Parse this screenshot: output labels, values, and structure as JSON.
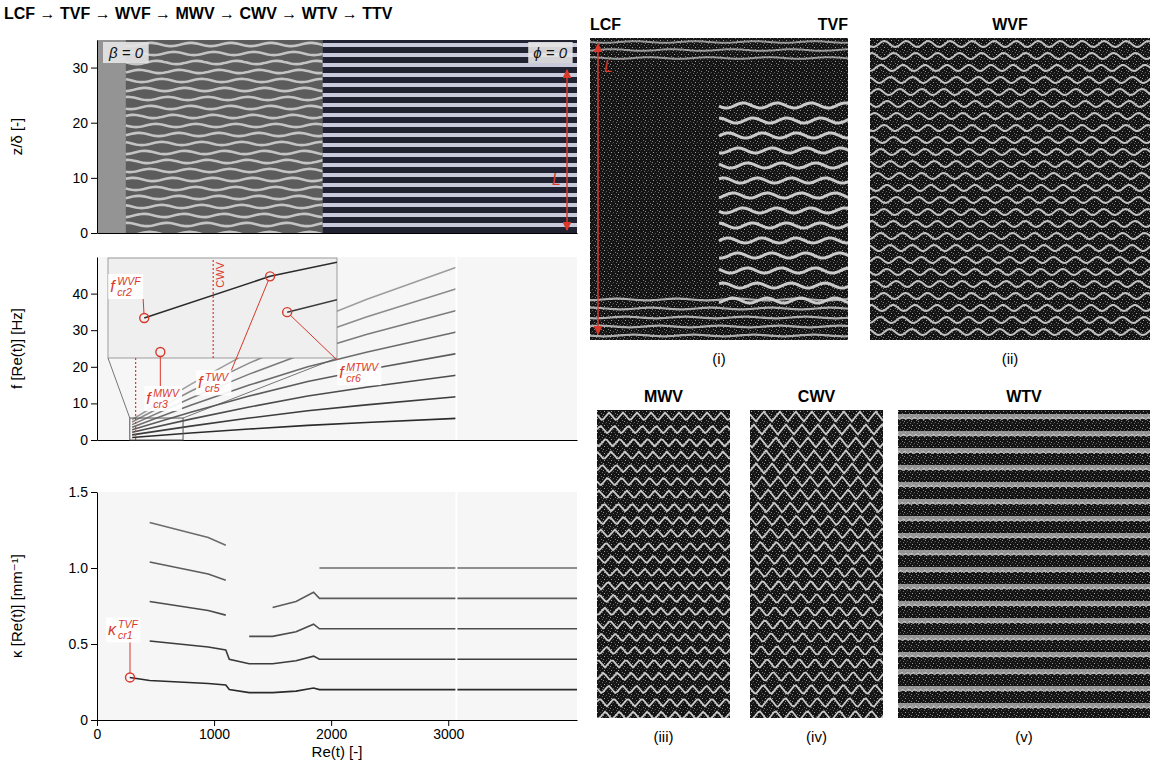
{
  "title": "LCF → TVF → WVF → MWV → CWV → WTV → TTV",
  "chart_data": [
    {
      "type": "space_time",
      "y_label": "z/δ [-]",
      "xlim": [
        0,
        4100
      ],
      "ylim": [
        0,
        35
      ],
      "yticks": [
        0,
        10,
        20,
        30
      ],
      "tick_labels": "y",
      "annotations": [
        "β = 0",
        "ϕ = 0"
      ],
      "length_label": "L"
    },
    {
      "type": "line",
      "y_label": "f [Re(t)] [Hz]",
      "xlim": [
        0,
        4100
      ],
      "ylim": [
        0,
        50
      ],
      "yticks": [
        0,
        10,
        20,
        30,
        40
      ],
      "tick_labels": "y",
      "x": [
        300,
        800,
        1300,
        1800,
        2300,
        3070
      ],
      "series": [
        {
          "color": "#2b2b2b",
          "values": [
            0.7,
            1.9,
            3.0,
            4.0,
            4.8,
            5.9
          ]
        },
        {
          "color": "#2b2b2b",
          "values": [
            1.4,
            3.8,
            6.0,
            8.0,
            9.6,
            11.8
          ]
        },
        {
          "color": "#2b2b2b",
          "values": [
            2.1,
            5.7,
            9.0,
            12.0,
            14.4,
            17.7
          ]
        },
        {
          "color": "#2b2b2b",
          "values": [
            2.8,
            7.6,
            12.0,
            16.0,
            19.2,
            23.6
          ]
        },
        {
          "color": "#2b2b2b",
          "values": [
            3.5,
            9.5,
            15.0,
            20.0,
            24.0,
            29.5
          ]
        },
        {
          "color": "#2b2b2b",
          "values": [
            4.2,
            11.4,
            18.0,
            24.0,
            28.8,
            35.4
          ]
        },
        {
          "color": "#2b2b2b",
          "values": [
            4.9,
            13.3,
            21.0,
            28.0,
            33.6,
            41.3
          ]
        },
        {
          "color": "#2b2b2b",
          "values": [
            5.6,
            15.2,
            24.0,
            32.0,
            38.4,
            47.2
          ]
        }
      ],
      "vlines": [
        {
          "x": 330,
          "line_style": "dotted",
          "color": "#d8392b"
        },
        {
          "x": 3070,
          "line_style": "solid",
          "color": "#ffffff"
        }
      ]
    },
    {
      "type": "line",
      "x_label": "Re(t) [-]",
      "y_label": "κ [Re(t)] [mm⁻¹]",
      "xlim": [
        0,
        4100
      ],
      "xticks": [
        0,
        1000,
        2000,
        3000
      ],
      "ylim": [
        0,
        1.5
      ],
      "yticks": [
        0,
        0.5,
        {
          "value": 1,
          "label": "1.0"
        },
        1.5
      ],
      "x": [
        280,
        450,
        700,
        950,
        1100,
        1130,
        1300,
        1500,
        1700,
        1850,
        1900,
        2300,
        2800,
        3070,
        4100
      ],
      "series": [
        {
          "color": "#2b2b2b",
          "values": [
            0.28,
            0.26,
            0.25,
            0.24,
            0.23,
            0.2,
            0.18,
            0.18,
            0.19,
            0.21,
            0.2,
            0.2,
            0.2,
            0.2,
            0.2
          ]
        },
        {
          "color": "#2b2b2b",
          "values": [
            null,
            0.52,
            0.5,
            0.48,
            0.46,
            0.4,
            0.37,
            0.37,
            0.39,
            0.42,
            0.4,
            0.4,
            0.4,
            0.4,
            0.4
          ]
        },
        {
          "color": "#2b2b2b",
          "values": [
            null,
            0.78,
            0.75,
            0.72,
            0.69,
            null,
            0.55,
            0.55,
            0.58,
            0.63,
            0.6,
            0.6,
            0.6,
            0.6,
            0.6
          ]
        },
        {
          "color": "#2b2b2b",
          "values": [
            null,
            1.04,
            1.0,
            0.96,
            0.92,
            null,
            null,
            0.74,
            0.78,
            0.84,
            0.8,
            0.8,
            0.8,
            0.8,
            0.8
          ]
        },
        {
          "color": "#2b2b2b",
          "values": [
            null,
            1.3,
            1.25,
            1.2,
            1.15,
            null,
            null,
            null,
            null,
            null,
            1.0,
            1.0,
            1.0,
            1.0,
            1.0
          ]
        }
      ],
      "vlines": [
        {
          "x": 3070,
          "line_style": "solid",
          "color": "#ffffff"
        }
      ],
      "points": [
        {
          "x": 282,
          "y": 0.28,
          "label": {
            "base": "κ",
            "sub": "cr1",
            "sup": "TVF"
          }
        }
      ]
    },
    {
      "type": "line",
      "xlim": [
        280,
        735
      ],
      "ylim": [
        0,
        6
      ],
      "tick_labels": false,
      "series": [
        {
          "color": "#2b2b2b",
          "x": [
            352,
            602,
            735
          ],
          "values": [
            2.4,
            4.9,
            5.75
          ]
        },
        {
          "color": "#2b2b2b",
          "x": [
            636,
            735
          ],
          "values": [
            2.75,
            3.5
          ]
        }
      ],
      "vlines": [
        {
          "x": 489,
          "label": "CWV",
          "line_style": "dotted",
          "color": "#d8392b"
        }
      ],
      "points": [
        {
          "x": 352,
          "y": 2.4,
          "label": {
            "base": "f",
            "sub": "cr2",
            "sup": "WVF"
          }
        },
        {
          "x": 384,
          "y": 0.36,
          "label": {
            "base": "f",
            "sub": "cr3",
            "sup": "MWV"
          }
        },
        {
          "x": 602,
          "y": 4.9,
          "label": {
            "base": "f",
            "sub": "cr5",
            "sup": "TWV"
          }
        },
        {
          "x": 636,
          "y": 2.75,
          "label": {
            "base": "f",
            "sub": "cr6",
            "sup": "MTWV"
          }
        }
      ]
    }
  ],
  "photos": [
    {
      "titles": [
        "LCF",
        "TVF"
      ],
      "label": "(i)",
      "length_label": "L"
    },
    {
      "titles": [
        "WVF"
      ],
      "label": "(ii)"
    },
    {
      "titles": [
        "MWV"
      ],
      "label": "(iii)"
    },
    {
      "titles": [
        "CWV"
      ],
      "label": "(iv)"
    },
    {
      "titles": [
        "WTV"
      ],
      "label": "(v)"
    }
  ]
}
